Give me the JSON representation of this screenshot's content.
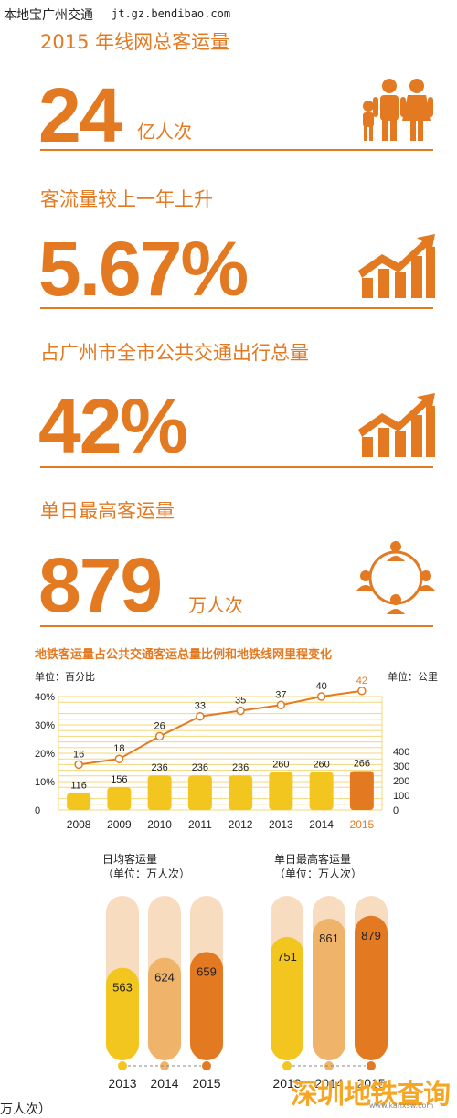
{
  "watermark": {
    "site": "本地宝广州交通",
    "url": "jt.gz.bendibao.com"
  },
  "stats": [
    {
      "title": "2015 年线网总客运量",
      "value": "24",
      "unit": "亿人次",
      "icon": "family-icon"
    },
    {
      "title": "客流量较上一年上升",
      "value": "5.67%",
      "unit": "",
      "icon": "rising-bars-icon"
    },
    {
      "title": "占广州市全市公共交通出行总量",
      "value": "42%",
      "unit": "",
      "icon": "rising-bars-icon"
    },
    {
      "title": "单日最高客运量",
      "value": "879",
      "unit": "万人次",
      "icon": "people-circle-icon"
    }
  ],
  "colors": {
    "orange": "#e37a22",
    "yellow": "#f2c61f",
    "light": "#f8dcc0",
    "mid": "#f0b36a",
    "grid": "#f5d77a"
  },
  "chart_data": [
    {
      "type": "bar+line",
      "title": "地铁客运量占公共交通客运总量比例和地铁线网里程变化",
      "left_unit": "单位：百分比",
      "right_unit": "单位：公里",
      "categories": [
        "2008",
        "2009",
        "2010",
        "2011",
        "2012",
        "2013",
        "2014",
        "2015"
      ],
      "left_ticks": [
        "0",
        "10%",
        "20%",
        "30%",
        "40%"
      ],
      "right_ticks": [
        "0",
        "100",
        "200",
        "300",
        "400"
      ],
      "line_values": [
        16,
        18,
        26,
        33,
        35,
        37,
        40,
        42
      ],
      "bar_values": [
        116,
        156,
        236,
        236,
        236,
        260,
        260,
        266
      ],
      "ylim_left": [
        0,
        40
      ],
      "ylim_right": [
        0,
        400
      ]
    },
    {
      "type": "bar",
      "title_line1": "日均客运量",
      "title_line2": "（单位：万人次）",
      "categories": [
        "2013",
        "2014",
        "2015"
      ],
      "values": [
        563,
        624,
        659
      ]
    },
    {
      "type": "bar",
      "title_line1": "单日最高客运量",
      "title_line2": "（单位：万人次）",
      "categories": [
        "2013",
        "2014",
        "2015"
      ],
      "values": [
        751,
        861,
        879
      ]
    }
  ],
  "brand": {
    "name": "深圳地铁查询",
    "url": "www.kanxsw.com"
  },
  "cutoff_text": "万人次）"
}
